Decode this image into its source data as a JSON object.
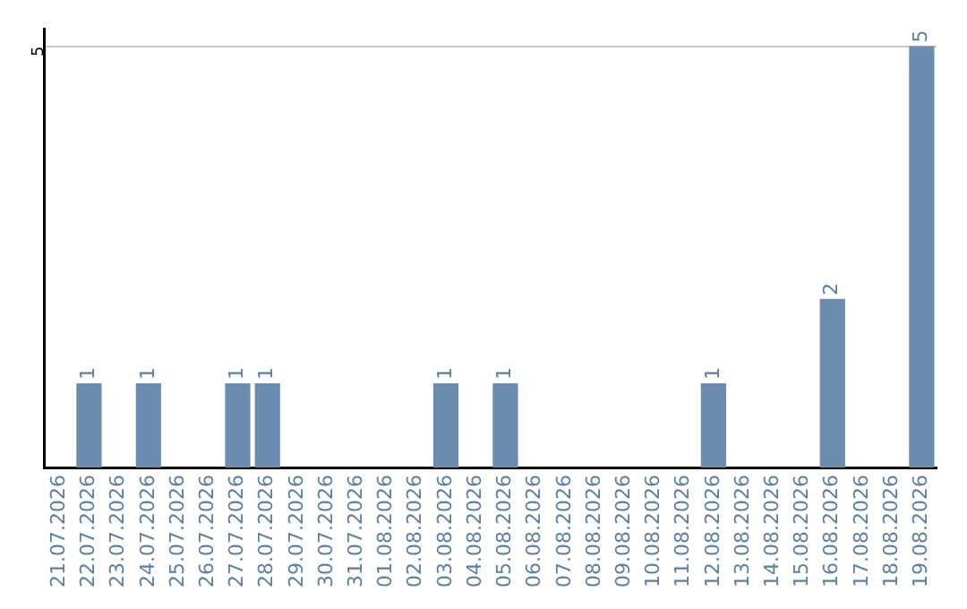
{
  "chart_data": {
    "type": "bar",
    "categories": [
      "21.07.2026",
      "22.07.2026",
      "23.07.2026",
      "24.07.2026",
      "25.07.2026",
      "26.07.2026",
      "27.07.2026",
      "28.07.2026",
      "29.07.2026",
      "30.07.2026",
      "31.07.2026",
      "01.08.2026",
      "02.08.2026",
      "03.08.2026",
      "04.08.2026",
      "05.08.2026",
      "06.08.2026",
      "07.08.2026",
      "08.08.2026",
      "09.08.2026",
      "10.08.2026",
      "11.08.2026",
      "12.08.2026",
      "13.08.2026",
      "14.08.2026",
      "15.08.2026",
      "16.08.2026",
      "17.08.2026",
      "18.08.2026",
      "19.08.2026"
    ],
    "values": [
      null,
      1,
      null,
      1,
      null,
      null,
      1,
      1,
      null,
      null,
      null,
      null,
      null,
      1,
      null,
      1,
      null,
      null,
      null,
      null,
      null,
      null,
      1,
      null,
      null,
      null,
      2,
      null,
      null,
      5
    ],
    "color": "#6a8caf",
    "ylim": [
      0,
      5.2
    ],
    "yticks": [
      5
    ],
    "grid": "y",
    "data_labels": true,
    "legend": false
  }
}
